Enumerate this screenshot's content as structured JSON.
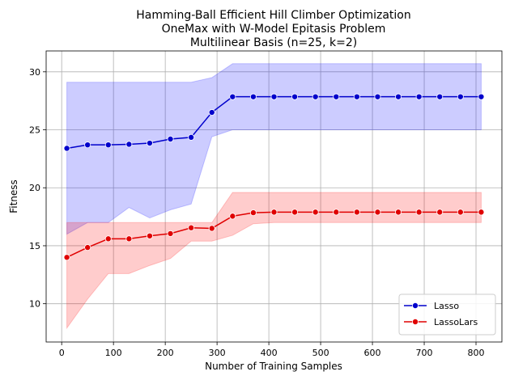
{
  "chart_data": {
    "type": "line",
    "title": [
      "Hamming-Ball Efficient Hill Climber Optimization",
      "OneMax with W-Model Epitasis Problem",
      "Multilinear Basis (n=25, k=2)"
    ],
    "xlabel": "Number of Training Samples",
    "ylabel": "Fitness",
    "xlim": [
      -30,
      850
    ],
    "ylim": [
      6.7,
      31.8
    ],
    "xticks": [
      0,
      100,
      200,
      300,
      400,
      500,
      600,
      700,
      800
    ],
    "yticks": [
      10,
      15,
      20,
      25,
      30
    ],
    "grid": true,
    "legend_position": "lower-right",
    "x": [
      10,
      50,
      90,
      130,
      170,
      210,
      250,
      290,
      330,
      370,
      410,
      450,
      490,
      530,
      570,
      610,
      650,
      690,
      730,
      770,
      810
    ],
    "series": [
      {
        "name": "Lasso",
        "color": "#0000cc",
        "band_color": "#0000ff",
        "values": [
          23.4,
          23.7,
          23.7,
          23.75,
          23.85,
          24.2,
          24.35,
          26.5,
          27.85,
          27.85,
          27.85,
          27.85,
          27.85,
          27.85,
          27.85,
          27.85,
          27.85,
          27.85,
          27.85,
          27.85,
          27.85
        ],
        "lower": [
          16.0,
          17.0,
          17.0,
          18.3,
          17.4,
          18.1,
          18.6,
          24.4,
          25.0,
          25.0,
          25.0,
          25.0,
          25.0,
          25.0,
          25.0,
          25.0,
          25.0,
          25.0,
          25.0,
          25.0,
          25.0
        ],
        "upper": [
          29.1,
          29.1,
          29.1,
          29.1,
          29.1,
          29.1,
          29.1,
          29.5,
          30.7,
          30.7,
          30.7,
          30.7,
          30.7,
          30.7,
          30.7,
          30.7,
          30.7,
          30.7,
          30.7,
          30.7,
          30.7
        ]
      },
      {
        "name": "LassoLars",
        "color": "#e00000",
        "band_color": "#ff0000",
        "values": [
          14.0,
          14.85,
          15.6,
          15.6,
          15.85,
          16.05,
          16.55,
          16.5,
          17.55,
          17.85,
          17.9,
          17.9,
          17.9,
          17.9,
          17.9,
          17.9,
          17.9,
          17.9,
          17.9,
          17.9,
          17.9
        ],
        "lower": [
          7.9,
          10.4,
          12.6,
          12.6,
          13.3,
          13.9,
          15.4,
          15.4,
          15.9,
          16.9,
          17.0,
          17.0,
          17.0,
          17.0,
          17.0,
          17.0,
          17.0,
          17.0,
          17.0,
          17.0,
          17.0
        ],
        "upper": [
          17.0,
          17.0,
          17.0,
          17.0,
          17.0,
          17.0,
          17.0,
          17.0,
          19.6,
          19.6,
          19.6,
          19.6,
          19.6,
          19.6,
          19.6,
          19.6,
          19.6,
          19.6,
          19.6,
          19.6,
          19.6
        ]
      }
    ]
  }
}
